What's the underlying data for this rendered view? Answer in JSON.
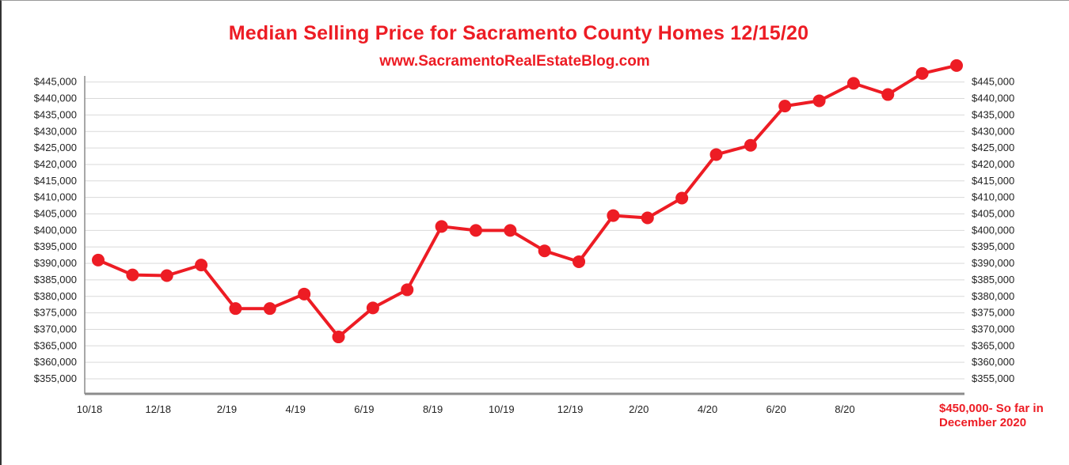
{
  "chart_data": {
    "type": "line",
    "title": "Median Selling Price for Sacramento County Homes 12/15/20",
    "subtitle": "www.SacramentoRealEstateBlog.com",
    "xlabel": "",
    "ylabel": "",
    "ylim": [
      350000,
      450000
    ],
    "y_ticks": [
      355000,
      360000,
      365000,
      370000,
      375000,
      380000,
      385000,
      390000,
      395000,
      400000,
      405000,
      410000,
      415000,
      420000,
      425000,
      430000,
      435000,
      440000,
      445000
    ],
    "y_tick_labels": [
      "$355,000",
      "$360,000",
      "$365,000",
      "$370,000",
      "$375,000",
      "$380,000",
      "$385,000",
      "$390,000",
      "$395,000",
      "$400,000",
      "$405,000",
      "$410,000",
      "$415,000",
      "$420,000",
      "$425,000",
      "$430,000",
      "$435,000",
      "$440,000",
      "$445,000"
    ],
    "x_tick_labels": [
      "10/18",
      "12/18",
      "2/19",
      "4/19",
      "6/19",
      "8/19",
      "10/19",
      "12/19",
      "2/20",
      "4/20",
      "6/20",
      "8/20"
    ],
    "grid": true,
    "color": "#ed1c24",
    "series": [
      {
        "values": [
          391000,
          386500,
          386300,
          389500,
          376300,
          376300,
          380700,
          367700,
          376500,
          382000,
          401200,
          400000,
          400000,
          393800,
          390500,
          404500,
          403800,
          409800,
          423000,
          425800,
          437700,
          439300,
          444600,
          441200,
          447600,
          450000
        ]
      }
    ],
    "annotation": {
      "line1": "$450,000- So far in",
      "line2": "December 2020"
    }
  }
}
